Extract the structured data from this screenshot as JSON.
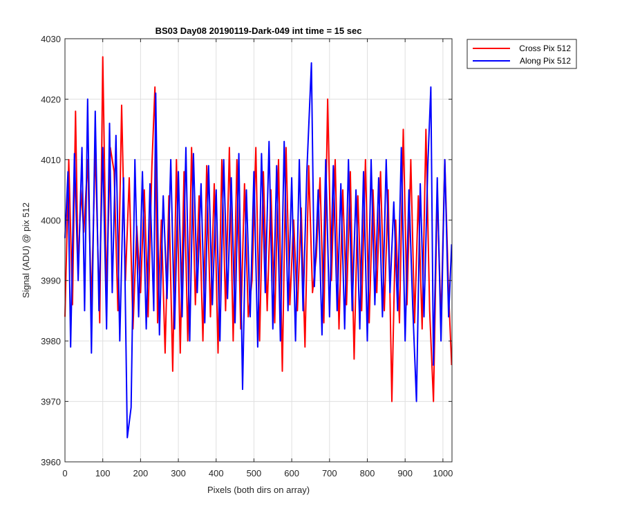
{
  "chart_data": {
    "type": "line",
    "title": "BS03 Day08 20190119-Dark-049 int time = 15 sec",
    "xlabel": "Pixels (both dirs on array)",
    "ylabel": "Signal (ADU) @ pix 512",
    "xlim": [
      0,
      1024
    ],
    "ylim": [
      3960,
      4030
    ],
    "xticks": [
      0,
      100,
      200,
      300,
      400,
      500,
      600,
      700,
      800,
      900,
      1000
    ],
    "yticks": [
      3960,
      3970,
      3980,
      3990,
      4000,
      4010,
      4020,
      4030
    ],
    "grid": true,
    "legend_location": "outside top-right",
    "series": [
      {
        "name": "Cross Pix 512",
        "color": "#ff0000",
        "x": [
          0,
          10,
          20,
          28,
          35,
          42,
          50,
          60,
          70,
          80,
          92,
          100,
          110,
          120,
          130,
          140,
          150,
          160,
          170,
          180,
          190,
          200,
          210,
          220,
          230,
          238,
          245,
          255,
          265,
          275,
          285,
          295,
          305,
          315,
          325,
          335,
          345,
          355,
          365,
          375,
          385,
          395,
          405,
          415,
          425,
          435,
          445,
          455,
          465,
          475,
          485,
          495,
          505,
          515,
          525,
          535,
          545,
          555,
          565,
          575,
          585,
          595,
          605,
          615,
          625,
          635,
          645,
          655,
          665,
          675,
          685,
          695,
          705,
          715,
          725,
          735,
          745,
          755,
          765,
          775,
          785,
          795,
          805,
          815,
          825,
          835,
          845,
          855,
          865,
          875,
          885,
          895,
          905,
          915,
          925,
          935,
          945,
          955,
          965,
          975,
          985,
          995,
          1005,
          1015,
          1023
        ],
        "y": [
          3984,
          4010,
          3986,
          4018,
          3991,
          4005,
          3998,
          4010,
          3986,
          4012,
          3983,
          4027,
          3988,
          4012,
          4008,
          3985,
          4019,
          3990,
          4007,
          3982,
          3999,
          3988,
          4005,
          3984,
          4009,
          4022,
          3983,
          4000,
          3978,
          4004,
          3975,
          4010,
          3978,
          4008,
          3980,
          4012,
          3986,
          4004,
          3980,
          4009,
          3984,
          4006,
          3978,
          4010,
          3985,
          4012,
          3980,
          4010,
          3982,
          4006,
          3984,
          3990,
          4012,
          3980,
          4008,
          3985,
          4005,
          3983,
          4010,
          3975,
          4012,
          3986,
          4000,
          3985,
          4002,
          3979,
          4009,
          3988,
          3994,
          4007,
          3983,
          4020,
          3990,
          4010,
          3982,
          4005,
          3986,
          4008,
          3977,
          4004,
          3985,
          4010,
          3983,
          4005,
          3988,
          4008,
          3985,
          4005,
          3970,
          4000,
          3983,
          4015,
          3986,
          4010,
          3983,
          4004,
          3982,
          4015,
          3985,
          3970,
          4005,
          3983,
          4010,
          3988,
          3976
        ]
      },
      {
        "name": "Along Pix 512",
        "color": "#0000ff",
        "x": [
          0,
          8,
          15,
          25,
          35,
          45,
          52,
          60,
          70,
          80,
          90,
          100,
          110,
          118,
          125,
          135,
          145,
          155,
          165,
          175,
          185,
          195,
          205,
          215,
          225,
          235,
          240,
          250,
          260,
          270,
          280,
          290,
          300,
          310,
          320,
          330,
          340,
          350,
          360,
          370,
          380,
          390,
          400,
          410,
          420,
          430,
          440,
          450,
          460,
          470,
          480,
          490,
          500,
          510,
          520,
          530,
          540,
          550,
          560,
          570,
          580,
          590,
          600,
          610,
          620,
          630,
          640,
          652,
          660,
          670,
          680,
          690,
          700,
          710,
          720,
          730,
          740,
          750,
          760,
          770,
          780,
          790,
          800,
          810,
          820,
          830,
          840,
          850,
          860,
          870,
          880,
          890,
          900,
          910,
          920,
          930,
          940,
          950,
          960,
          968,
          975,
          985,
          995,
          1005,
          1015,
          1023
        ],
        "y": [
          3997,
          4008,
          3979,
          4011,
          3990,
          4012,
          3985,
          4020,
          3978,
          4018,
          3985,
          4012,
          3982,
          4016,
          3988,
          4014,
          3980,
          4007,
          3964,
          3969,
          4010,
          3984,
          4008,
          3982,
          4006,
          3985,
          4021,
          3981,
          4004,
          3987,
          4010,
          3982,
          4008,
          3984,
          4012,
          3980,
          4011,
          3988,
          4006,
          3983,
          4009,
          3986,
          4005,
          3980,
          4010,
          3987,
          4007,
          3983,
          4011,
          3972,
          4005,
          3984,
          4008,
          3979,
          4011,
          3988,
          4013,
          3982,
          4009,
          3980,
          4013,
          3985,
          4007,
          3980,
          4010,
          3985,
          4008,
          4026,
          3989,
          4005,
          3981,
          4010,
          3984,
          4009,
          3985,
          4006,
          3982,
          4010,
          3985,
          4005,
          3982,
          4008,
          3980,
          4010,
          3986,
          4007,
          3984,
          4010,
          3988,
          4003,
          3985,
          4012,
          3980,
          4005,
          3986,
          3970,
          4006,
          3984,
          4009,
          4022,
          3976,
          4007,
          3980,
          4010,
          3984,
          3996
        ]
      }
    ]
  }
}
